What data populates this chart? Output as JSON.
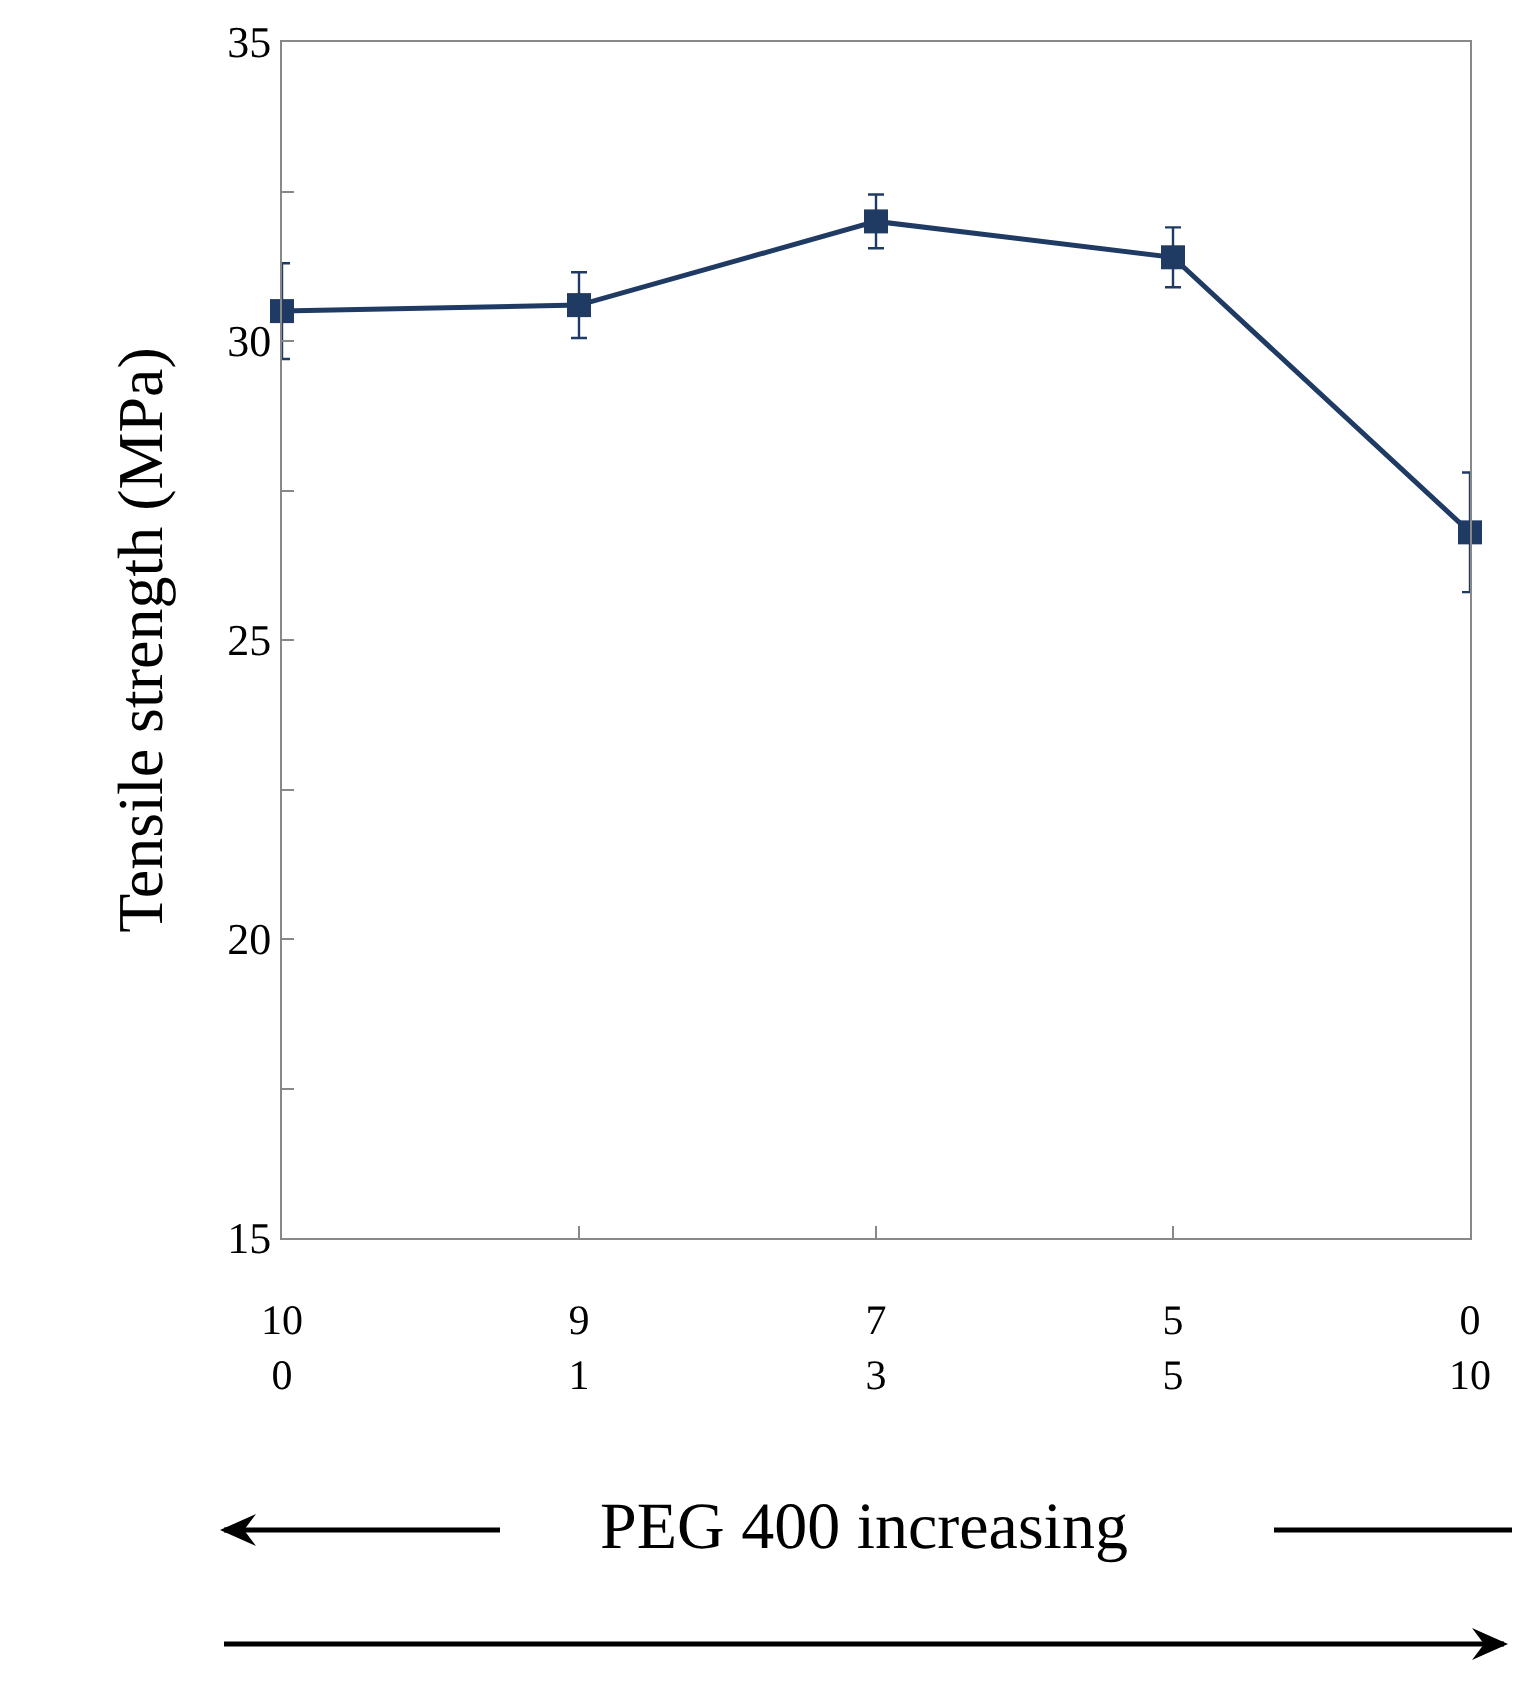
{
  "chart_data": {
    "type": "line",
    "ylabel": "Tensile strength (MPa)",
    "categories": [
      "10\n0",
      "9\n1",
      "7\n3",
      "5\n5",
      "0\n10"
    ],
    "series": [
      {
        "color": "#1f3a63",
        "values": [
          30.5,
          30.6,
          32.0,
          31.4,
          26.8
        ],
        "errors": [
          0.8,
          0.55,
          0.45,
          0.5,
          1.0
        ]
      }
    ],
    "ylim": [
      15,
      35
    ],
    "yticks": [
      15,
      {
        "value": 17.5,
        "label": null
      },
      20,
      {
        "value": 22.5,
        "label": null
      },
      25,
      {
        "value": 27.5,
        "label": null
      },
      30,
      {
        "value": 32.5,
        "label": null
      },
      35
    ],
    "marker": "square",
    "line_style": "solid",
    "grid": false,
    "annotations": [
      "PEG 400 increasing"
    ]
  }
}
